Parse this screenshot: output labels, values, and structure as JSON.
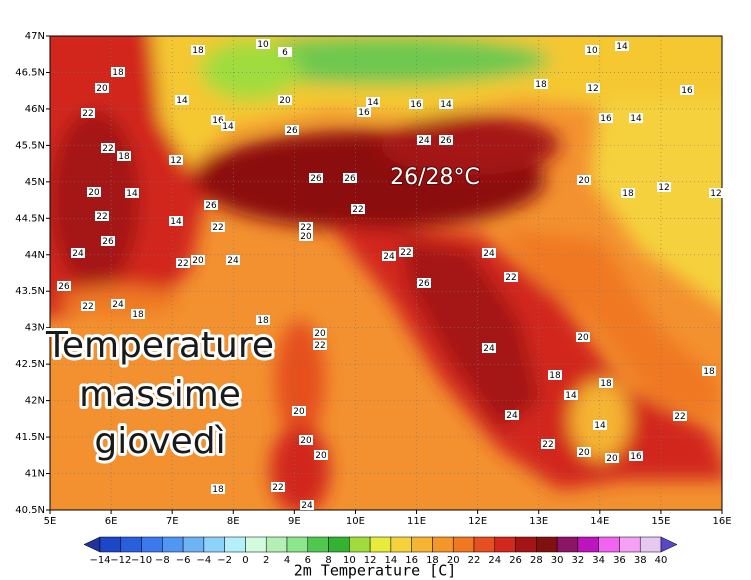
{
  "map": {
    "xticks": [
      "5E",
      "6E",
      "7E",
      "8E",
      "9E",
      "10E",
      "11E",
      "12E",
      "13E",
      "14E",
      "15E",
      "16E"
    ],
    "yticks": [
      "47N",
      "46.5N",
      "46N",
      "45.5N",
      "45N",
      "44.5N",
      "44N",
      "43.5N",
      "43N",
      "42.5N",
      "42N",
      "41.5N",
      "41N",
      "40.5N"
    ],
    "headline": [
      "Temperature",
      "massime",
      "giovedì"
    ],
    "range_label": "26/28°C",
    "stations": [
      18,
      10,
      6,
      18,
      20,
      14,
      22,
      16,
      14,
      26,
      20,
      14,
      16,
      16,
      14,
      18,
      10,
      14,
      12,
      16,
      16,
      14,
      24,
      26,
      22,
      18,
      12,
      20,
      14,
      26,
      26,
      20,
      18,
      12,
      12,
      22,
      26,
      22,
      14,
      22,
      26,
      22,
      20,
      24,
      22,
      20,
      24,
      24,
      22,
      24,
      22,
      26,
      26,
      22,
      24,
      18,
      18,
      20,
      22,
      24,
      20,
      18,
      18,
      14,
      18,
      20,
      24,
      22,
      14,
      22,
      20,
      20,
      20,
      16,
      20,
      18,
      22,
      24
    ]
  },
  "colorbar": {
    "title": "2m Temperature [C]",
    "labels": [
      "−14",
      "−12",
      "−10",
      "−8",
      "−6",
      "−4",
      "−2",
      "0",
      "2",
      "4",
      "6",
      "8",
      "10",
      "12",
      "14",
      "16",
      "18",
      "20",
      "22",
      "24",
      "26",
      "28",
      "30",
      "32",
      "34",
      "36",
      "38",
      "40"
    ],
    "colors": [
      "#1e32a0",
      "#1e46c8",
      "#2a5fdc",
      "#3c78f0",
      "#5096f5",
      "#6eb4f5",
      "#8cd2fa",
      "#b4f0fa",
      "#d2fadc",
      "#b4f0b4",
      "#8ce68c",
      "#50c850",
      "#32b432",
      "#a0dc3c",
      "#e6eb3c",
      "#f5d23c",
      "#f5b432",
      "#f59628",
      "#f07820",
      "#e6501e",
      "#d2281e",
      "#a51414",
      "#821010",
      "#8c1464",
      "#be14be",
      "#f064f0",
      "#f5a0f5",
      "#e6c8f0",
      "#5a46c8"
    ]
  }
}
